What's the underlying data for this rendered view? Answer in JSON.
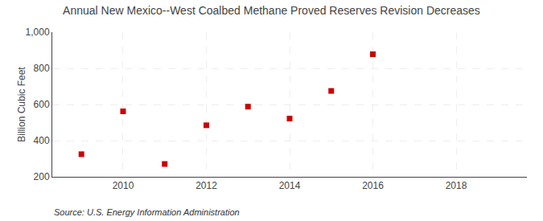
{
  "chart_data": {
    "type": "scatter",
    "title": "Annual New Mexico--West Coalbed Methane Proved Reserves Revision Decreases",
    "ylabel": "Billion Cubic Feet",
    "annotations": [
      "Source: U.S. Energy Information Administration"
    ],
    "x": [
      2009,
      2010,
      2011,
      2012,
      2013,
      2014,
      2015,
      2016
    ],
    "values": [
      325,
      562,
      271,
      485,
      588,
      522,
      675,
      878
    ],
    "color": "#cc0000",
    "marker": "square",
    "xlim": [
      2008.3,
      2019.7
    ],
    "xticks": [
      2010,
      2012,
      2014,
      2016,
      2018
    ],
    "ylim": [
      200,
      1000
    ],
    "yticks": [
      200,
      400,
      600,
      800,
      {
        "value": 1000,
        "label": "1,000"
      }
    ],
    "grid": true
  }
}
